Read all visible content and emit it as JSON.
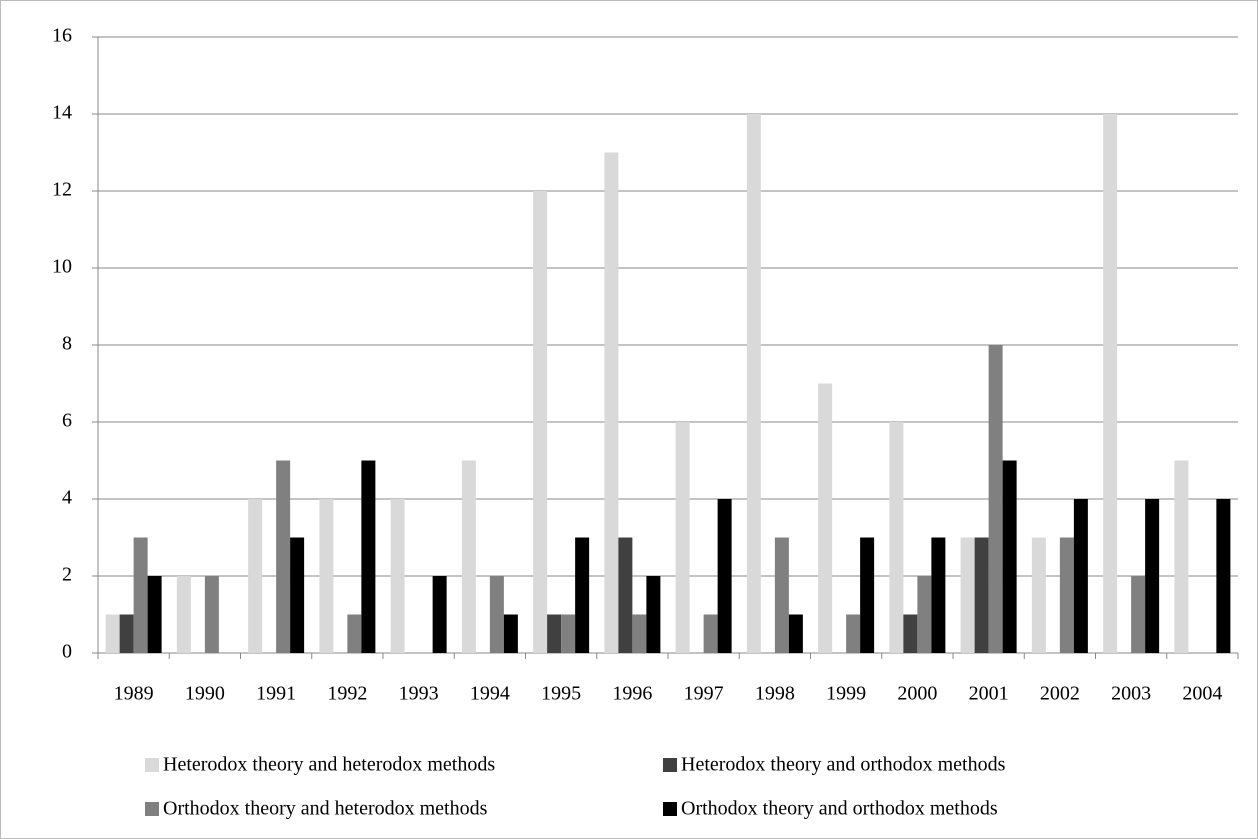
{
  "chart_data": {
    "type": "bar",
    "categories": [
      "1989",
      "1990",
      "1991",
      "1992",
      "1993",
      "1994",
      "1995",
      "1996",
      "1997",
      "1998",
      "1999",
      "2000",
      "2001",
      "2002",
      "2003",
      "2004"
    ],
    "series": [
      {
        "name": "Heterodox theory and heterodox methods",
        "color": "#d9d9d9",
        "values": [
          1,
          2,
          4,
          4,
          4,
          5,
          12,
          13,
          6,
          14,
          7,
          6,
          3,
          3,
          14,
          5
        ]
      },
      {
        "name": "Heterodox theory and orthodox methods",
        "color": "#404040",
        "values": [
          1,
          0,
          0,
          0,
          0,
          0,
          1,
          3,
          0,
          0,
          0,
          1,
          3,
          0,
          0,
          0
        ]
      },
      {
        "name": "Orthodox theory and heterodox methods",
        "color": "#808080",
        "values": [
          3,
          2,
          5,
          1,
          0,
          2,
          1,
          1,
          1,
          3,
          1,
          2,
          8,
          3,
          2,
          0
        ]
      },
      {
        "name": "Orthodox theory and orthodox methods",
        "color": "#000000",
        "values": [
          2,
          0,
          3,
          5,
          2,
          1,
          3,
          2,
          4,
          1,
          3,
          3,
          5,
          4,
          4,
          4
        ]
      }
    ],
    "ylim": [
      0,
      16
    ],
    "yticks": [
      0,
      2,
      4,
      6,
      8,
      10,
      12,
      14,
      16
    ],
    "grid": true,
    "legend": "bottom"
  }
}
